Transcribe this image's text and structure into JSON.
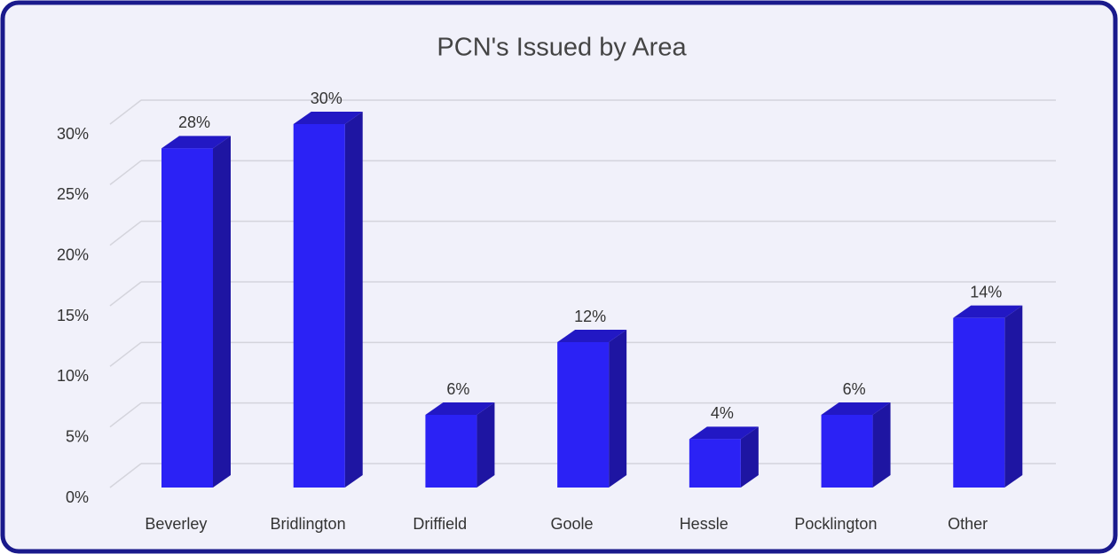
{
  "chart_data": {
    "type": "bar3d",
    "title": "PCN's Issued by Area",
    "categories": [
      "Beverley",
      "Bridlington",
      "Driffield",
      "Goole",
      "Hessle",
      "Pocklington",
      "Other"
    ],
    "values": [
      28,
      30,
      6,
      12,
      4,
      6,
      14
    ],
    "value_labels": [
      "28%",
      "30%",
      "6%",
      "12%",
      "4%",
      "6%",
      "14%"
    ],
    "color": "#2b22f5",
    "ylim": [
      0,
      30
    ],
    "yticks": [
      {
        "value": 0,
        "label": "0%"
      },
      {
        "value": 5,
        "label": "5%"
      },
      {
        "value": 10,
        "label": "10%"
      },
      {
        "value": 15,
        "label": "15%"
      },
      {
        "value": 20,
        "label": "20%"
      },
      {
        "value": 25,
        "label": "25%"
      },
      {
        "value": 30,
        "label": "30%"
      }
    ],
    "grid": true
  }
}
